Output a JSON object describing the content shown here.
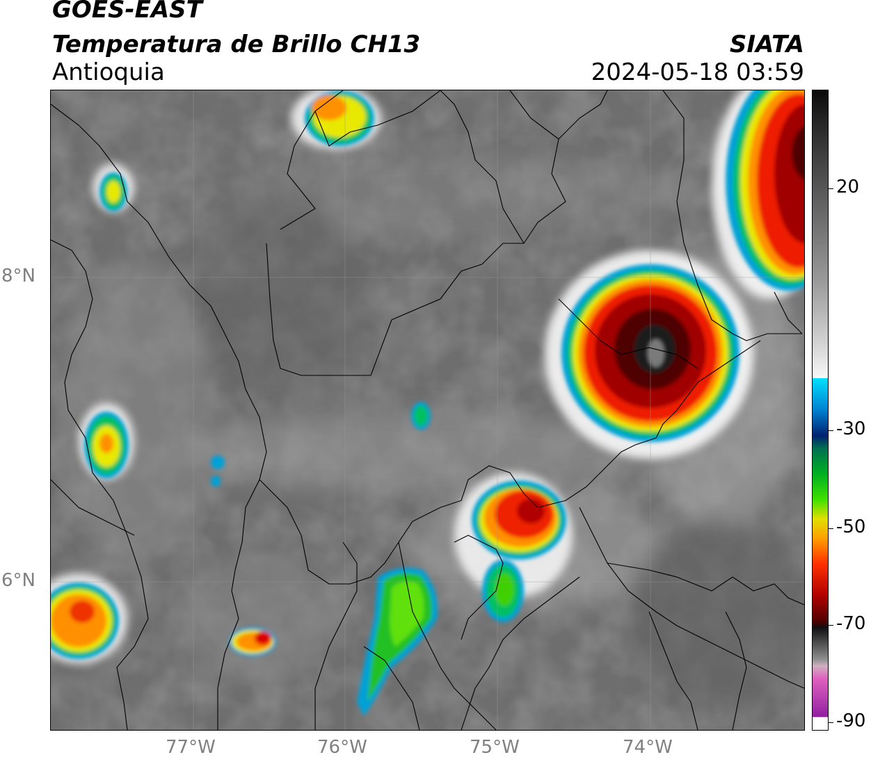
{
  "header": {
    "satellite": "GOES-EAST",
    "product": "Temperatura de Brillo CH13",
    "region": "Antioquia",
    "organization": "SIATA",
    "timestamp": "2024-05-18 03:59"
  },
  "map": {
    "lat_labels": [
      "8°N",
      "6°N"
    ],
    "lon_labels": [
      "77°W",
      "76°W",
      "75°W",
      "74°W"
    ]
  },
  "colorbar": {
    "tick_labels": [
      "20",
      "-30",
      "-50",
      "-70",
      "-90"
    ]
  },
  "colors": {
    "background_gray": "#6f6f6f",
    "land_border": "#000000"
  }
}
